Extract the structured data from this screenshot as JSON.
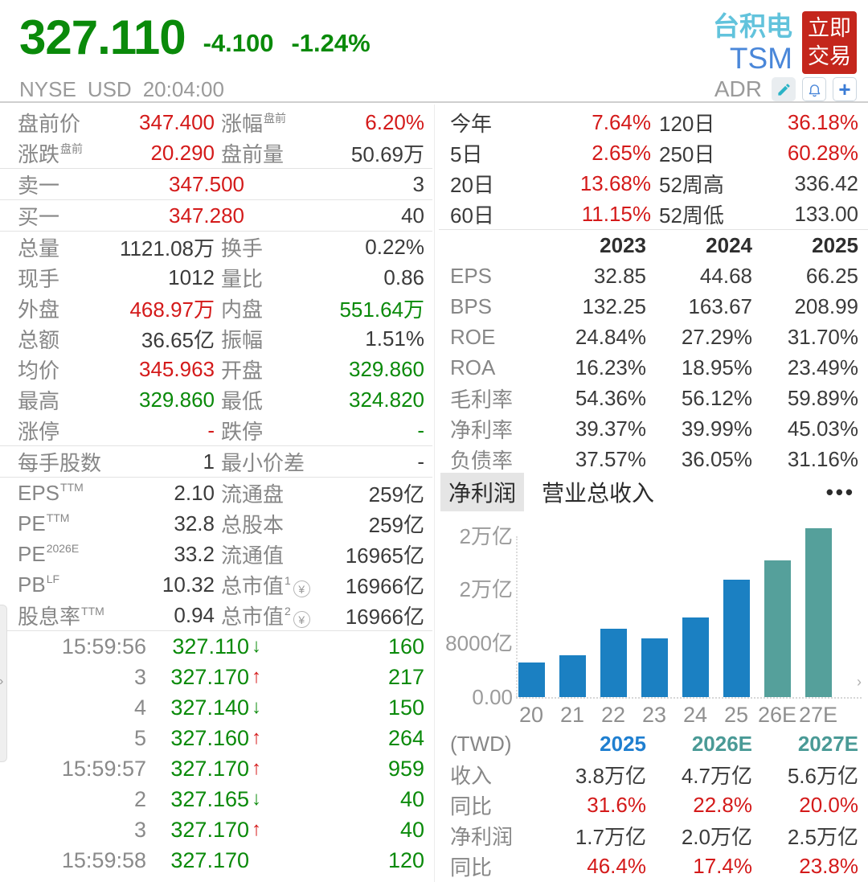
{
  "header": {
    "price": "327.110",
    "change": "-4.100",
    "change_pct": "-1.24%",
    "name_cn": "台积电",
    "ticker": "TSM",
    "trade_button_line1": "立即",
    "trade_button_line2": "交易",
    "exchange": "NYSE",
    "currency": "USD",
    "time": "20:04:00",
    "adr_label": "ADR",
    "icons": [
      "edit-pencil-icon",
      "alert-bell-icon",
      "add-plus-icon"
    ]
  },
  "colors": {
    "up_red": "#d41a1a",
    "down_green": "#0a8a0a",
    "price_green": "#0a8a0a",
    "bar_blue": "#1b80c2",
    "bar_teal": "#55a09b",
    "name_cyan": "#62c3dc",
    "ticker_blue": "#4a87d9",
    "trade_button_red": "#c4261c"
  },
  "left_rows": [
    {
      "t": "pair",
      "l1": "盘前价",
      "s1": "",
      "v1": "347.400",
      "c1": "red",
      "l2": "涨幅",
      "s2": "盘前",
      "v2": "6.20%",
      "c2": "red"
    },
    {
      "t": "pair",
      "l1": "涨跌",
      "s1": "盘前",
      "v1": "20.290",
      "c1": "red",
      "l2": "盘前量",
      "s2": "",
      "v2": "50.69万",
      "c2": "dark"
    },
    {
      "t": "div"
    },
    {
      "t": "wide",
      "l": "卖一",
      "v": "347.500",
      "c": "red",
      "r": "3"
    },
    {
      "t": "div"
    },
    {
      "t": "wide",
      "l": "买一",
      "v": "347.280",
      "c": "red",
      "r": "40"
    },
    {
      "t": "div"
    },
    {
      "t": "pair",
      "l1": "总量",
      "s1": "",
      "v1": "1121.08万",
      "c1": "dark",
      "l2": "换手",
      "s2": "",
      "v2": "0.22%",
      "c2": "dark"
    },
    {
      "t": "pair",
      "l1": "现手",
      "s1": "",
      "v1": "1012",
      "c1": "dark",
      "l2": "量比",
      "s2": "",
      "v2": "0.86",
      "c2": "dark"
    },
    {
      "t": "pair",
      "l1": "外盘",
      "s1": "",
      "v1": "468.97万",
      "c1": "red",
      "l2": "内盘",
      "s2": "",
      "v2": "551.64万",
      "c2": "green"
    },
    {
      "t": "pair",
      "l1": "总额",
      "s1": "",
      "v1": "36.65亿",
      "c1": "dark",
      "l2": "振幅",
      "s2": "",
      "v2": "1.51%",
      "c2": "dark"
    },
    {
      "t": "pair",
      "l1": "均价",
      "s1": "",
      "v1": "345.963",
      "c1": "red",
      "l2": "开盘",
      "s2": "",
      "v2": "329.860",
      "c2": "green"
    },
    {
      "t": "pair",
      "l1": "最高",
      "s1": "",
      "v1": "329.860",
      "c1": "green",
      "l2": "最低",
      "s2": "",
      "v2": "324.820",
      "c2": "green"
    },
    {
      "t": "pair",
      "l1": "涨停",
      "s1": "",
      "v1": "-",
      "c1": "red",
      "l2": "跌停",
      "s2": "",
      "v2": "-",
      "c2": "green"
    },
    {
      "t": "div"
    },
    {
      "t": "pair",
      "l1": "每手股数",
      "s1": "",
      "v1": "1",
      "c1": "dark",
      "l2": "最小价差",
      "s2": "",
      "v2": "-",
      "c2": "dark"
    },
    {
      "t": "div"
    },
    {
      "t": "pair",
      "l1": "EPS",
      "s1": "TTM",
      "v1": "2.10",
      "c1": "dark",
      "l2": "流通盘",
      "s2": "",
      "v2": "259亿",
      "c2": "dark"
    },
    {
      "t": "pair",
      "l1": "PE",
      "s1": "TTM",
      "v1": "32.8",
      "c1": "dark",
      "l2": "总股本",
      "s2": "",
      "v2": "259亿",
      "c2": "dark"
    },
    {
      "t": "pair",
      "l1": "PE",
      "s1": "2026E",
      "v1": "33.2",
      "c1": "dark",
      "l2": "流通值",
      "s2": "",
      "v2": "16965亿",
      "c2": "dark"
    },
    {
      "t": "pair",
      "l1": "PB",
      "s1": "LF",
      "v1": "10.32",
      "c1": "dark",
      "l2": "总市值",
      "s2": "1",
      "yen": true,
      "v2": "16966亿",
      "c2": "dark"
    },
    {
      "t": "pair",
      "l1": "股息率",
      "s1": "TTM",
      "v1": "0.94",
      "c1": "dark",
      "l2": "总市值",
      "s2": "2",
      "yen": true,
      "v2": "16966亿",
      "c2": "dark"
    },
    {
      "t": "div"
    }
  ],
  "ticks": [
    {
      "time": "15:59:56",
      "price": "327.110",
      "dir": "down",
      "vol": "160"
    },
    {
      "time": "3",
      "price": "327.170",
      "dir": "up",
      "vol": "217"
    },
    {
      "time": "4",
      "price": "327.140",
      "dir": "down",
      "vol": "150"
    },
    {
      "time": "5",
      "price": "327.160",
      "dir": "up",
      "vol": "264"
    },
    {
      "time": "15:59:57",
      "price": "327.170",
      "dir": "up",
      "vol": "959"
    },
    {
      "time": "2",
      "price": "327.165",
      "dir": "down",
      "vol": "40"
    },
    {
      "time": "3",
      "price": "327.170",
      "dir": "up",
      "vol": "40"
    },
    {
      "time": "15:59:58",
      "price": "327.170",
      "dir": "none",
      "vol": "120"
    }
  ],
  "perf": [
    {
      "l1": "今年",
      "v1": "7.64%",
      "c1": "red",
      "l2": "120日",
      "v2": "36.18%",
      "c2": "red"
    },
    {
      "l1": "5日",
      "v1": "2.65%",
      "c1": "red",
      "l2": "250日",
      "v2": "60.28%",
      "c2": "red"
    },
    {
      "l1": "20日",
      "v1": "13.68%",
      "c1": "red",
      "l2": "52周高",
      "v2": "336.42",
      "c2": "dark"
    },
    {
      "l1": "60日",
      "v1": "11.15%",
      "c1": "red",
      "l2": "52周低",
      "v2": "133.00",
      "c2": "dark"
    }
  ],
  "fin_table": {
    "years": [
      "2023",
      "2024",
      "2025"
    ],
    "rows": [
      {
        "label": "EPS",
        "values": [
          "32.85",
          "44.68",
          "66.25"
        ]
      },
      {
        "label": "BPS",
        "values": [
          "132.25",
          "163.67",
          "208.99"
        ]
      },
      {
        "label": "ROE",
        "values": [
          "24.84%",
          "27.29%",
          "31.70%"
        ]
      },
      {
        "label": "ROA",
        "values": [
          "16.23%",
          "18.95%",
          "23.49%"
        ]
      },
      {
        "label": "毛利率",
        "values": [
          "54.36%",
          "56.12%",
          "59.89%"
        ]
      },
      {
        "label": "净利率",
        "values": [
          "39.37%",
          "39.99%",
          "45.03%"
        ]
      },
      {
        "label": "负债率",
        "values": [
          "37.57%",
          "36.05%",
          "31.16%"
        ]
      }
    ]
  },
  "chart_tabs": {
    "selected": "净利润",
    "other": "营业总收入",
    "menu": "•••"
  },
  "chart_data": {
    "type": "bar",
    "title": "净利润",
    "categories": [
      "20",
      "21",
      "22",
      "23",
      "24",
      "25",
      "26E",
      "27E"
    ],
    "values": [
      5200,
      6200,
      10200,
      8800,
      11900,
      17500,
      20400,
      25200
    ],
    "unit": "亿 TWD",
    "y_tick_labels": [
      "2万亿",
      "2万亿",
      "8000亿",
      "0.00"
    ],
    "y_tick_values": [
      24000,
      16000,
      8000,
      0
    ],
    "ylim": [
      0,
      24000
    ],
    "estimate_from_index": 6,
    "bar_color_historical": "#1b80c2",
    "bar_color_estimate": "#55a09b",
    "xlabel": "",
    "ylabel": "",
    "grid": "dotted-axis-only",
    "legend": "none"
  },
  "forecast_table": {
    "unit_label": "(TWD)",
    "columns": [
      {
        "label": "2025",
        "color": "blue"
      },
      {
        "label": "2026E",
        "color": "teal"
      },
      {
        "label": "2027E",
        "color": "teal"
      }
    ],
    "rows": [
      {
        "label": "收入",
        "values": [
          "3.8万亿",
          "4.7万亿",
          "5.6万亿"
        ],
        "color": "dark"
      },
      {
        "label": "同比",
        "values": [
          "31.6%",
          "22.8%",
          "20.0%"
        ],
        "color": "red"
      },
      {
        "label": "净利润",
        "values": [
          "1.7万亿",
          "2.0万亿",
          "2.5万亿"
        ],
        "color": "dark"
      },
      {
        "label": "同比",
        "values": [
          "46.4%",
          "17.4%",
          "23.8%"
        ],
        "color": "red"
      }
    ]
  }
}
